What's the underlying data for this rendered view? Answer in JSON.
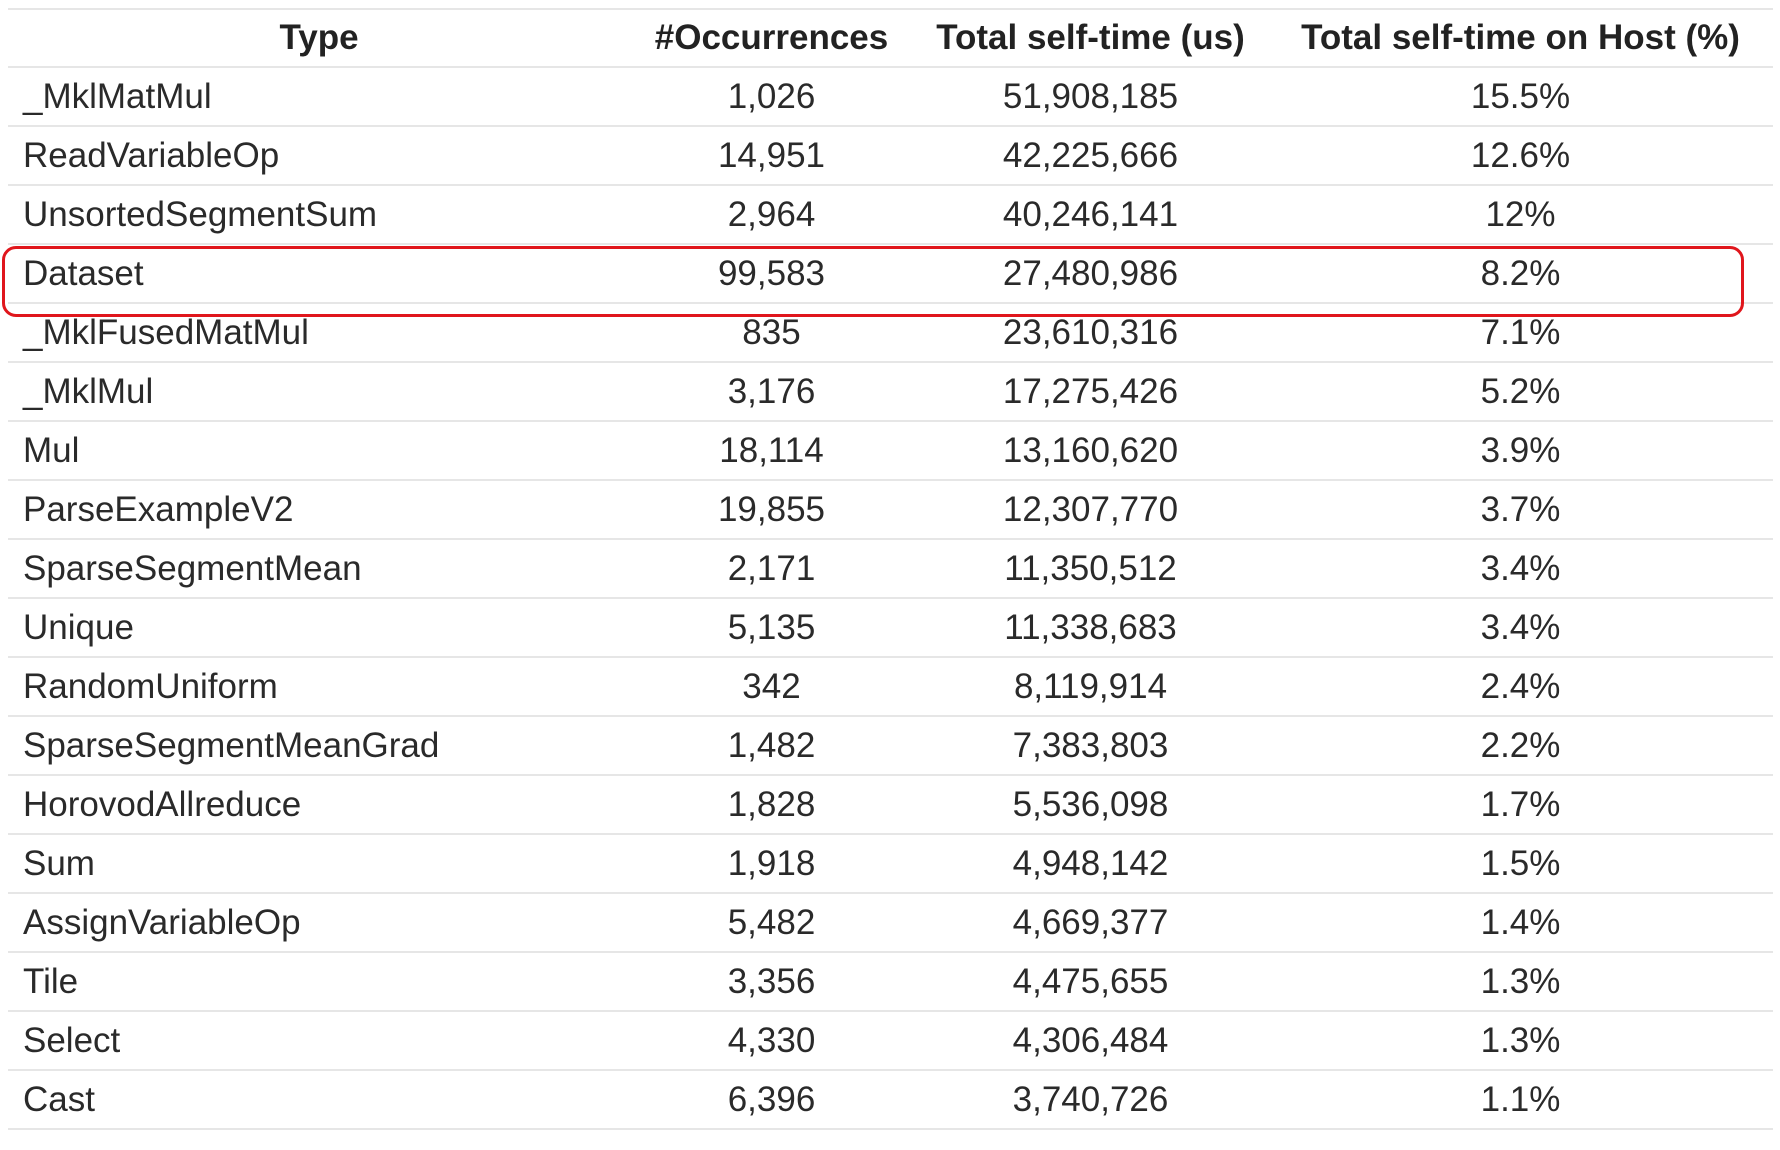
{
  "table": {
    "headers": [
      "Type",
      "#Occurrences",
      "Total self-time (us)",
      "Total self-time on Host (%)"
    ],
    "rows": [
      {
        "type": "_MklMatMul",
        "occurrences": "1,026",
        "self_time": "51,908,185",
        "host_pct": "15.5%"
      },
      {
        "type": "ReadVariableOp",
        "occurrences": "14,951",
        "self_time": "42,225,666",
        "host_pct": "12.6%"
      },
      {
        "type": "UnsortedSegmentSum",
        "occurrences": "2,964",
        "self_time": "40,246,141",
        "host_pct": "12%"
      },
      {
        "type": "Dataset",
        "occurrences": "99,583",
        "self_time": "27,480,986",
        "host_pct": "8.2%"
      },
      {
        "type": "_MklFusedMatMul",
        "occurrences": "835",
        "self_time": "23,610,316",
        "host_pct": "7.1%"
      },
      {
        "type": "_MklMul",
        "occurrences": "3,176",
        "self_time": "17,275,426",
        "host_pct": "5.2%"
      },
      {
        "type": "Mul",
        "occurrences": "18,114",
        "self_time": "13,160,620",
        "host_pct": "3.9%"
      },
      {
        "type": "ParseExampleV2",
        "occurrences": "19,855",
        "self_time": "12,307,770",
        "host_pct": "3.7%"
      },
      {
        "type": "SparseSegmentMean",
        "occurrences": "2,171",
        "self_time": "11,350,512",
        "host_pct": "3.4%"
      },
      {
        "type": "Unique",
        "occurrences": "5,135",
        "self_time": "11,338,683",
        "host_pct": "3.4%"
      },
      {
        "type": "RandomUniform",
        "occurrences": "342",
        "self_time": "8,119,914",
        "host_pct": "2.4%"
      },
      {
        "type": "SparseSegmentMeanGrad",
        "occurrences": "1,482",
        "self_time": "7,383,803",
        "host_pct": "2.2%"
      },
      {
        "type": "HorovodAllreduce",
        "occurrences": "1,828",
        "self_time": "5,536,098",
        "host_pct": "1.7%"
      },
      {
        "type": "Sum",
        "occurrences": "1,918",
        "self_time": "4,948,142",
        "host_pct": "1.5%"
      },
      {
        "type": "AssignVariableOp",
        "occurrences": "5,482",
        "self_time": "4,669,377",
        "host_pct": "1.4%"
      },
      {
        "type": "Tile",
        "occurrences": "3,356",
        "self_time": "4,475,655",
        "host_pct": "1.3%"
      },
      {
        "type": "Select",
        "occurrences": "4,330",
        "self_time": "4,306,484",
        "host_pct": "1.3%"
      },
      {
        "type": "Cast",
        "occurrences": "6,396",
        "self_time": "3,740,726",
        "host_pct": "1.1%"
      }
    ]
  },
  "highlight": {
    "row_type": "Dataset",
    "color": "#e0161c"
  },
  "colors": {
    "grid_line": "#e6e6e6",
    "text": "#222222",
    "background": "#ffffff"
  }
}
